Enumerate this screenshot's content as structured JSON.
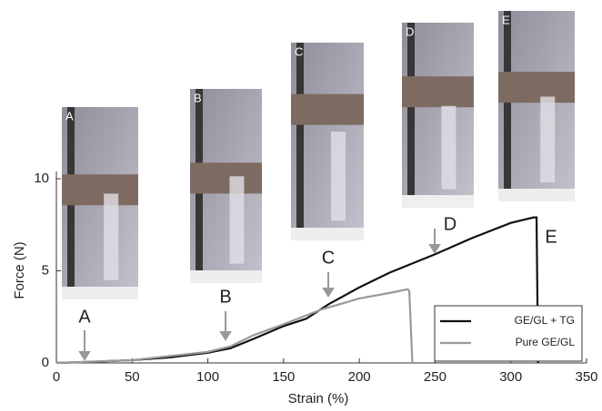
{
  "chart_data": {
    "type": "line",
    "xlabel": "Strain (%)",
    "ylabel": "Force (N)",
    "xlim": [
      0,
      350
    ],
    "ylim": [
      0,
      10
    ],
    "xticks": [
      0,
      50,
      100,
      150,
      200,
      250,
      300,
      350
    ],
    "yticks": [
      0,
      5,
      10
    ],
    "legend": "lower right",
    "annotations": [
      "A",
      "B",
      "C",
      "D",
      "E"
    ],
    "series": [
      {
        "name": "GE/GL + TG",
        "color": "#111111",
        "x": [
          0,
          20,
          50,
          75,
          100,
          115,
          130,
          150,
          165,
          180,
          200,
          220,
          250,
          275,
          300,
          315,
          317,
          318
        ],
        "values": [
          0,
          0.05,
          0.15,
          0.3,
          0.55,
          0.8,
          1.3,
          2.0,
          2.4,
          3.2,
          4.1,
          4.9,
          5.9,
          6.8,
          7.6,
          7.9,
          7.9,
          0
        ]
      },
      {
        "name": "Pure GE/GL",
        "color": "#999999",
        "x": [
          0,
          50,
          100,
          115,
          130,
          150,
          175,
          200,
          220,
          232,
          233,
          235
        ],
        "values": [
          0,
          0.15,
          0.6,
          0.9,
          1.5,
          2.1,
          2.9,
          3.5,
          3.8,
          4.0,
          3.9,
          0
        ]
      }
    ]
  },
  "insets": [
    "A",
    "B",
    "C",
    "D",
    "E"
  ]
}
